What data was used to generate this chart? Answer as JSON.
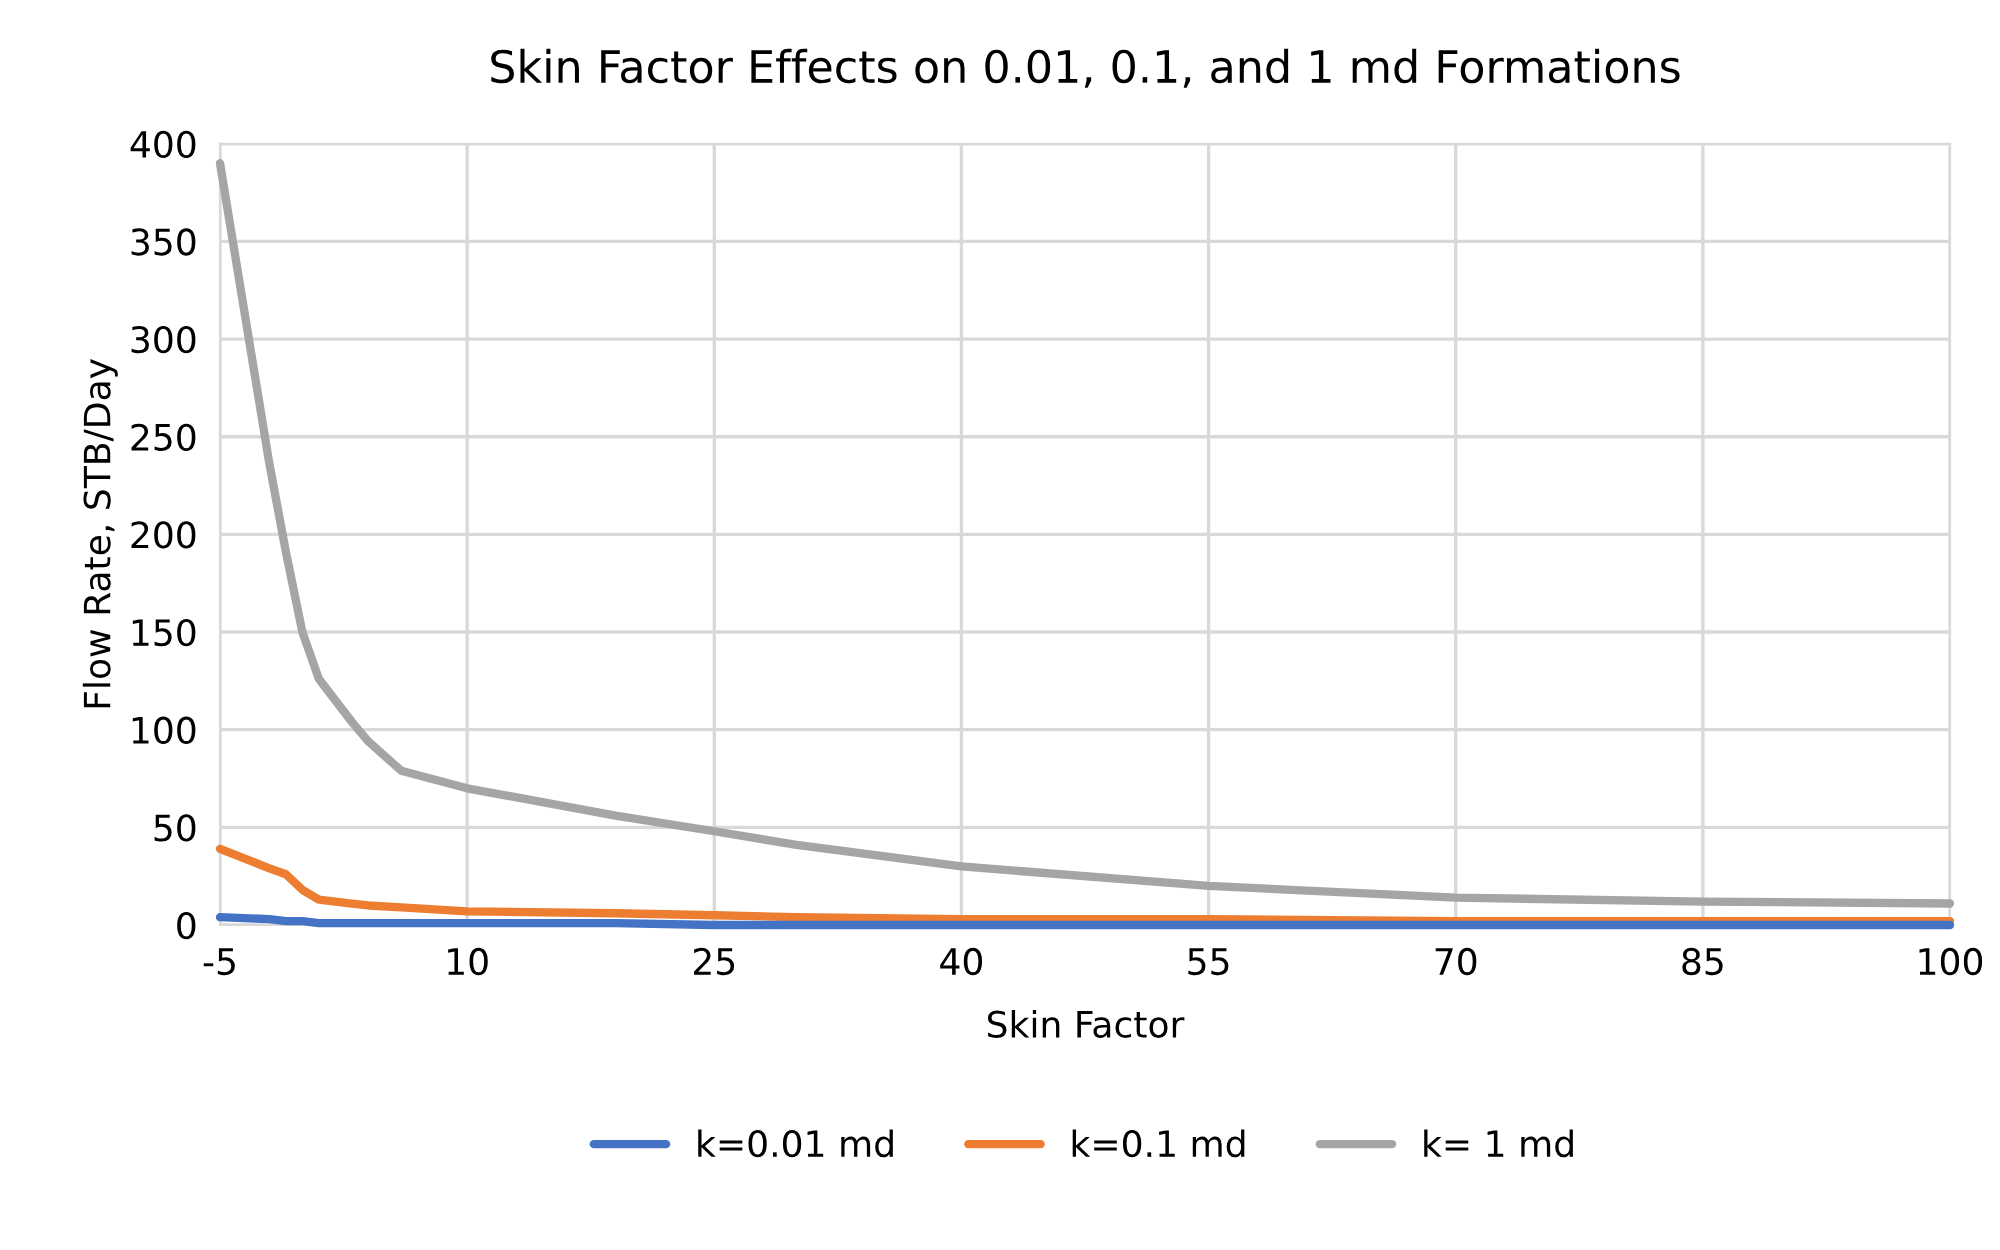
{
  "chart_data": {
    "type": "line",
    "title": "Skin Factor Effects on 0.01, 0.1, and 1 md Formations",
    "xlabel": "Skin Factor",
    "ylabel": "Flow Rate, STB/Day",
    "x": [
      -5,
      -2,
      -1,
      0,
      1,
      3,
      4,
      6,
      10,
      19,
      25,
      30,
      40,
      55,
      70,
      85,
      100
    ],
    "series": [
      {
        "name": "k=0.01 md",
        "color": "#4472c4",
        "values": [
          4,
          3,
          2,
          2,
          1,
          1,
          1,
          1,
          1,
          1,
          0,
          0,
          0,
          0,
          0,
          0,
          0
        ]
      },
      {
        "name": "k=0.1 md",
        "color": "#ed7d31",
        "values": [
          39,
          29,
          26,
          18,
          13,
          11,
          10,
          9,
          7,
          6,
          5,
          4,
          3,
          3,
          2,
          2,
          2
        ]
      },
      {
        "name": "k= 1 md",
        "color": "#a5a5a5",
        "values": [
          390,
          236,
          191,
          150,
          126,
          104,
          94,
          79,
          70,
          56,
          48,
          41,
          30,
          20,
          14,
          12,
          11
        ]
      }
    ],
    "xlim": [
      -5,
      100
    ],
    "xticks": [
      -5,
      10,
      25,
      40,
      55,
      70,
      85,
      100
    ],
    "ylim": [
      0,
      400
    ],
    "yticks": [
      0,
      50,
      100,
      150,
      200,
      250,
      300,
      350,
      400
    ],
    "grid": true,
    "legend": "bottom",
    "marker": "none",
    "line_style": "solid"
  }
}
